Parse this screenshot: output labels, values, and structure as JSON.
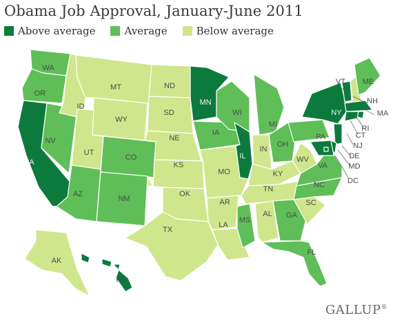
{
  "title": "Obama Job Approval, January-June 2011",
  "legend": [
    {
      "label": "Above average",
      "color": "#0c7a3c"
    },
    {
      "label": "Average",
      "color": "#5fbe57"
    },
    {
      "label": "Below average",
      "color": "#d0e68c"
    }
  ],
  "colors": {
    "above": "#0c7a3c",
    "average": "#5fbe57",
    "below": "#d0e68c",
    "border": "#ffffff"
  },
  "states": [
    {
      "code": "WA",
      "category": "average"
    },
    {
      "code": "OR",
      "category": "average"
    },
    {
      "code": "CA",
      "category": "above"
    },
    {
      "code": "NV",
      "category": "average"
    },
    {
      "code": "ID",
      "category": "below"
    },
    {
      "code": "MT",
      "category": "below"
    },
    {
      "code": "WY",
      "category": "below"
    },
    {
      "code": "UT",
      "category": "below"
    },
    {
      "code": "AZ",
      "category": "average"
    },
    {
      "code": "CO",
      "category": "average"
    },
    {
      "code": "NM",
      "category": "average"
    },
    {
      "code": "ND",
      "category": "below"
    },
    {
      "code": "SD",
      "category": "below"
    },
    {
      "code": "NE",
      "category": "below"
    },
    {
      "code": "KS",
      "category": "below"
    },
    {
      "code": "OK",
      "category": "below"
    },
    {
      "code": "TX",
      "category": "below"
    },
    {
      "code": "MN",
      "category": "above"
    },
    {
      "code": "IA",
      "category": "average"
    },
    {
      "code": "MO",
      "category": "below"
    },
    {
      "code": "AR",
      "category": "below"
    },
    {
      "code": "LA",
      "category": "below"
    },
    {
      "code": "WI",
      "category": "average"
    },
    {
      "code": "IL",
      "category": "above"
    },
    {
      "code": "MI",
      "category": "average"
    },
    {
      "code": "IN",
      "category": "below"
    },
    {
      "code": "OH",
      "category": "average"
    },
    {
      "code": "KY",
      "category": "below"
    },
    {
      "code": "TN",
      "category": "below"
    },
    {
      "code": "MS",
      "category": "average"
    },
    {
      "code": "AL",
      "category": "below"
    },
    {
      "code": "GA",
      "category": "average"
    },
    {
      "code": "FL",
      "category": "average"
    },
    {
      "code": "SC",
      "category": "below"
    },
    {
      "code": "NC",
      "category": "average"
    },
    {
      "code": "VA",
      "category": "average"
    },
    {
      "code": "WV",
      "category": "below"
    },
    {
      "code": "PA",
      "category": "average"
    },
    {
      "code": "NY",
      "category": "above"
    },
    {
      "code": "VT",
      "category": "above"
    },
    {
      "code": "NH",
      "category": "below"
    },
    {
      "code": "ME",
      "category": "average"
    },
    {
      "code": "MA",
      "category": "above"
    },
    {
      "code": "RI",
      "category": "above"
    },
    {
      "code": "CT",
      "category": "above"
    },
    {
      "code": "NJ",
      "category": "above"
    },
    {
      "code": "DE",
      "category": "above"
    },
    {
      "code": "MD",
      "category": "above"
    },
    {
      "code": "DC",
      "category": "above"
    },
    {
      "code": "AK",
      "category": "below"
    },
    {
      "code": "HI",
      "category": "above"
    }
  ],
  "source": "GALLUP",
  "source_mark": "®"
}
